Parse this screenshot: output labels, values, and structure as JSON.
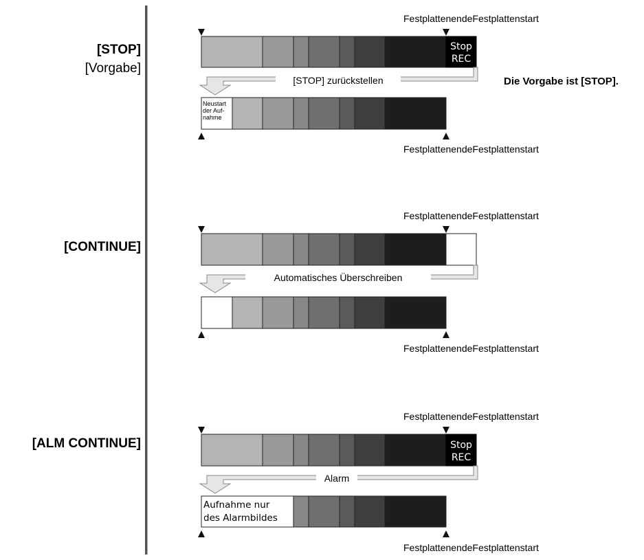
{
  "modes": [
    {
      "label": "[STOP]",
      "sublabel": "[Vorgabe]",
      "top_edge_label": "FestplattenendeFestplattenstart",
      "bottom_edge_label": "FestplattenendeFestplattenstart",
      "top_end_box": {
        "kind": "stop",
        "line1": "Stop",
        "line2": "REC"
      },
      "arrow_label": "[STOP] zurückstellen",
      "bottom_start_box": {
        "kind": "small-text",
        "lines": [
          "Neustart",
          "der Auf-",
          "nahme"
        ]
      }
    },
    {
      "label": "[CONTINUE]",
      "top_edge_label": "FestplattenendeFestplattenstart",
      "bottom_edge_label": "FestplattenendeFestplattenstart",
      "top_end_box": {
        "kind": "white"
      },
      "arrow_label": "Automatisches Überschreiben",
      "bottom_start_box": {
        "kind": "white"
      }
    },
    {
      "label": "[ALM CONTINUE]",
      "top_edge_label": "FestplattenendeFestplattenstart",
      "bottom_edge_label": "FestplattenendeFestplattenstart",
      "top_end_box": {
        "kind": "stop",
        "line1": "Stop",
        "line2": "REC"
      },
      "arrow_label": "Alarm",
      "bottom_start_box": {
        "kind": "text",
        "lines": [
          "Aufnahme nur",
          "des Alarmbildes"
        ]
      }
    }
  ],
  "default_note": "Die Vorgabe ist [STOP].",
  "colors": {
    "segments": [
      "#b4b4b4",
      "#9a9a9a",
      "#878787",
      "#6f6f6f",
      "#5a5a5a",
      "#3f3f3f",
      "#1d1d1d",
      "#000000"
    ],
    "arrow_fill": "#e6e6e6",
    "divider": "#555555"
  }
}
